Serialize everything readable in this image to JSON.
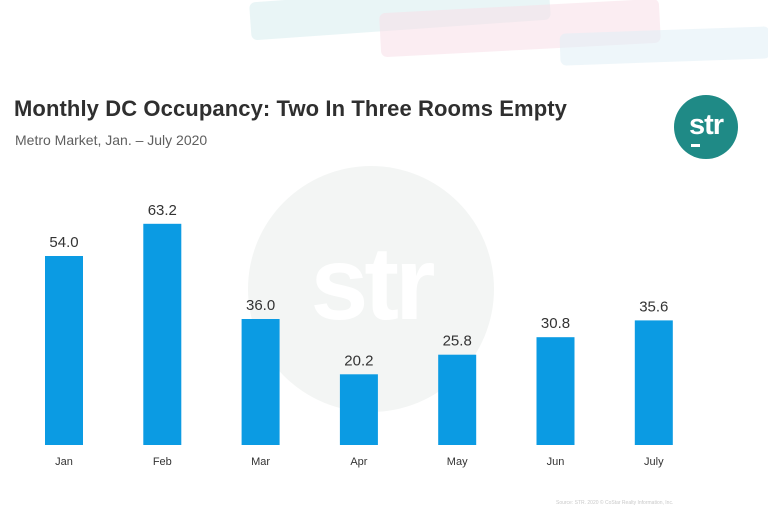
{
  "header": {
    "title": "Monthly DC Occupancy: Two In Three Rooms Empty",
    "subtitle": "Metro Market, Jan. – July 2020"
  },
  "logo": {
    "text": "str",
    "color": "#1f8a86"
  },
  "watermark": {
    "text": "str"
  },
  "footer": {
    "source": "Source: STR. 2020 © CoStar Realty Information, Inc."
  },
  "chart_data": {
    "type": "bar",
    "title": "Monthly DC Occupancy: Two In Three Rooms Empty",
    "subtitle": "Metro Market, Jan. – July 2020",
    "categories": [
      "Jan",
      "Feb",
      "Mar",
      "Apr",
      "May",
      "Jun",
      "July"
    ],
    "values": [
      54.0,
      63.2,
      36.0,
      20.2,
      25.8,
      30.8,
      35.6
    ],
    "data_labels": [
      "54.0",
      "63.2",
      "36.0",
      "20.2",
      "25.8",
      "30.8",
      "35.6"
    ],
    "xlabel": "",
    "ylabel": "",
    "ylim": [
      0,
      70
    ],
    "grid": false,
    "legend": "none",
    "bar_color": "#0b9be3"
  }
}
